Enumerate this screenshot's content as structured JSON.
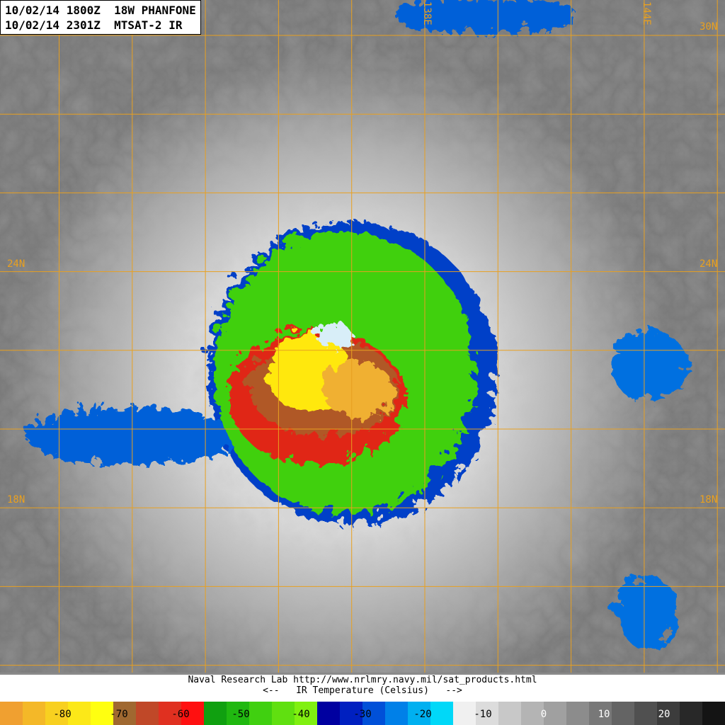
{
  "header": {
    "line1": "10/02/14 1800Z  18W PHANFONE",
    "line2": "10/02/14 2301Z  MTSAT-2 IR"
  },
  "grid": {
    "line_color": "#e8a020",
    "lon_labels": [
      "138E",
      "144E"
    ],
    "lat_labels": [
      "30N",
      "24N",
      "18N"
    ]
  },
  "footer": {
    "credit": "Naval Research Lab http://www.nrlmry.navy.mil/sat_products.html",
    "scale_title": "<--   IR Temperature (Celsius)   -->"
  },
  "colorbar": {
    "tick_labels": [
      "-80",
      "-70",
      "-60",
      "-50",
      "-40",
      "-30",
      "-20",
      "-10",
      "0",
      "10",
      "20"
    ],
    "segments": [
      "#f0a030",
      "#f4b828",
      "#f8d020",
      "#fce818",
      "#ffff10",
      "#a06830",
      "#c04828",
      "#e03020",
      "#ff1010",
      "#10a010",
      "#20b810",
      "#40d010",
      "#60e010",
      "#80f010",
      "#0000a0",
      "#0020c0",
      "#0050d8",
      "#0080e8",
      "#00b0f0",
      "#00d8f8",
      "#f0f0f0",
      "#dcdcdc",
      "#c8c8c8",
      "#b4b4b4",
      "#a0a0a0",
      "#8c8c8c",
      "#787878",
      "#646464",
      "#505050",
      "#3c3c3c",
      "#282828",
      "#141414"
    ]
  }
}
